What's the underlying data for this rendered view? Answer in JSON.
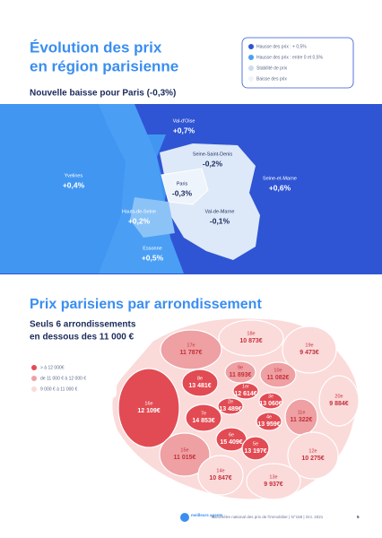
{
  "header": {
    "title": [
      "Évolution des prix",
      "en région parisienne"
    ],
    "subtitle": "Nouvelle baisse pour Paris (-0,3%)"
  },
  "map": {
    "legend": [
      "Hausse des prix : + 0,5%",
      "Hausse des prix : entre 0 et 0,5%",
      "Stabilité de prix",
      "Baisse des prix"
    ],
    "regions": [
      {
        "name": "Val-d'Oise",
        "value": "+0,7%"
      },
      {
        "name": "Seine-Saint-Denis",
        "value": "-0,2%"
      },
      {
        "name": "Yvelines",
        "value": "+0,4%"
      },
      {
        "name": "Paris",
        "value": "-0,3%"
      },
      {
        "name": "Seine-et-Marne",
        "value": "+0,6%"
      },
      {
        "name": "Hauts-de-Seine",
        "value": "+0,2%"
      },
      {
        "name": "Val-de-Marne",
        "value": "-0,1%"
      },
      {
        "name": "Essonne",
        "value": "+0,5%"
      }
    ]
  },
  "section": {
    "title": "Prix parisiens par arrondissement",
    "subtitle": [
      "Seuls 6 arrondissements",
      "en dessous des 11 000 €"
    ],
    "legend": [
      "> à 12 000€",
      "de 11 000 € à 12 000 €",
      "9 000 € à 11 000 €"
    ],
    "arrondissements": [
      {
        "name": "17e",
        "price": "11 787€"
      },
      {
        "name": "18e",
        "price": "10 873€"
      },
      {
        "name": "19e",
        "price": "9 473€"
      },
      {
        "name": "16e",
        "price": "12 109€"
      },
      {
        "name": "8e",
        "price": "13 481€"
      },
      {
        "name": "9e",
        "price": "11 893€"
      },
      {
        "name": "10e",
        "price": "11 082€"
      },
      {
        "name": "1er",
        "price": "12 614€"
      },
      {
        "name": "3e",
        "price": "13 060€"
      },
      {
        "name": "2e",
        "price": "13 489€"
      },
      {
        "name": "7e",
        "price": "14 853€"
      },
      {
        "name": "4e",
        "price": "13 959€"
      },
      {
        "name": "11e",
        "price": "11 322€"
      },
      {
        "name": "20e",
        "price": "9 884€"
      },
      {
        "name": "6e",
        "price": "15 409€"
      },
      {
        "name": "5e",
        "price": "13 197€"
      },
      {
        "name": "12e",
        "price": "10 275€"
      },
      {
        "name": "15e",
        "price": "11 015€"
      },
      {
        "name": "14e",
        "price": "10 847€"
      },
      {
        "name": "13e",
        "price": "9 937€"
      }
    ]
  },
  "footer": {
    "brand": "meilleurs agents",
    "text": "Baromètre national des prix de l'immobilier | N°158 | Oct. 2021",
    "page": "5"
  }
}
